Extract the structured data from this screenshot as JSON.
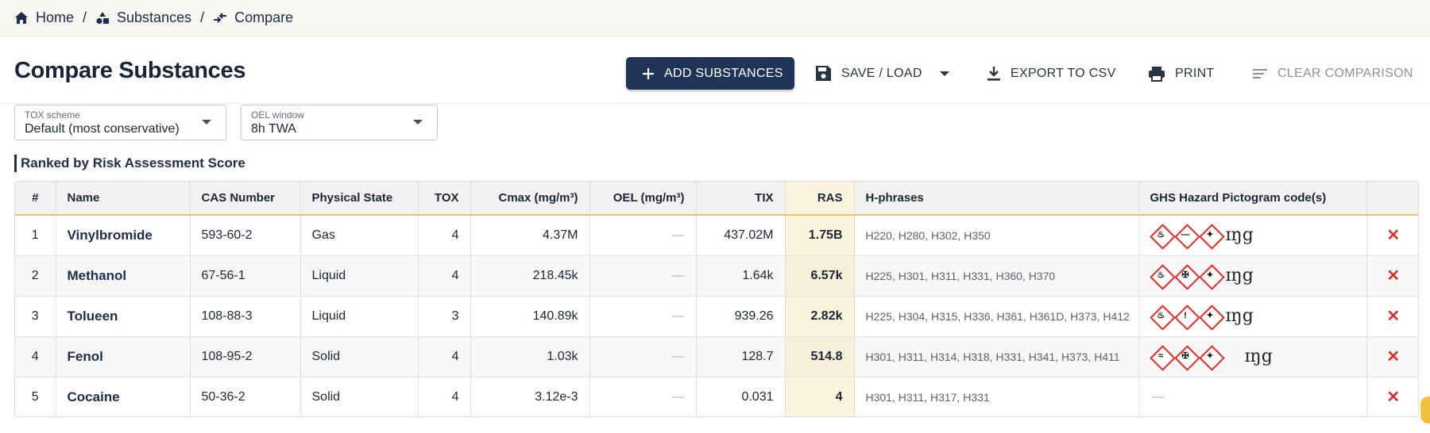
{
  "breadcrumb": {
    "home": "Home",
    "substances": "Substances",
    "compare": "Compare",
    "sep": "/"
  },
  "header": {
    "title": "Compare Substances",
    "add_label": "ADD SUBSTANCES",
    "save_label": "SAVE / LOAD",
    "export_label": "EXPORT TO CSV",
    "print_label": "PRINT",
    "clear_label": "CLEAR COMPARISON"
  },
  "filters": {
    "tox": {
      "label": "TOX scheme",
      "value": "Default (most conservative)"
    },
    "oel": {
      "label": "OEL window",
      "value": "8h TWA"
    }
  },
  "section_title": "Ranked by Risk Assessment Score",
  "table": {
    "columns": [
      "#",
      "Name",
      "CAS Number",
      "Physical State",
      "TOX",
      "Cmax (mg/m³)",
      "OEL (mg/m³)",
      "TIX",
      "RAS",
      "H-phrases",
      "GHS Hazard Pictogram code(s)",
      ""
    ],
    "rows": [
      {
        "rank": "1",
        "name": "Vinylbromide",
        "cas": "593-60-2",
        "state": "Gas",
        "tox": "4",
        "cmax": "4.37M",
        "oel": "—",
        "tix": "437.02M",
        "ras": "1.75B",
        "hphrases": "H220, H280, H302, H350",
        "pictograms": [
          "flame",
          "gas",
          "health"
        ],
        "pict_extra": "ɪŋg",
        "remove": "✕"
      },
      {
        "rank": "2",
        "name": "Methanol",
        "cas": "67-56-1",
        "state": "Liquid",
        "tox": "4",
        "cmax": "218.45k",
        "oel": "—",
        "tix": "1.64k",
        "ras": "6.57k",
        "hphrases": "H225, H301, H311, H331, H360, H370",
        "pictograms": [
          "flame",
          "skull",
          "health"
        ],
        "pict_extra": "ɪŋg",
        "remove": "✕"
      },
      {
        "rank": "3",
        "name": "Tolueen",
        "cas": "108-88-3",
        "state": "Liquid",
        "tox": "3",
        "cmax": "140.89k",
        "oel": "—",
        "tix": "939.26",
        "ras": "2.82k",
        "hphrases": "H225, H304, H315, H336, H361, H361D, H373, H412",
        "pictograms": [
          "flame",
          "exclamation",
          "health"
        ],
        "pict_extra": "ɪŋg",
        "remove": "✕"
      },
      {
        "rank": "4",
        "name": "Fenol",
        "cas": "108-95-2",
        "state": "Solid",
        "tox": "4",
        "cmax": "1.03k",
        "oel": "—",
        "tix": "128.7",
        "ras": "514.8",
        "hphrases": "H301, H311, H314, H318, H331, H341, H373, H411",
        "pictograms": [
          "corrosion",
          "skull",
          "health"
        ],
        "pict_extra": "ɪŋg",
        "remove": "✕"
      },
      {
        "rank": "5",
        "name": "Cocaine",
        "cas": "50-36-2",
        "state": "Solid",
        "tox": "4",
        "cmax": "3.12e-3",
        "oel": "—",
        "tix": "0.031",
        "ras": "4",
        "hphrases": "H301, H311, H317, H331",
        "pictograms": [],
        "pict_extra": "—",
        "remove": "✕"
      }
    ]
  },
  "colors": {
    "primary": "#1f3558",
    "accent": "#e3c766",
    "danger": "#d9302b",
    "ras_highlight": "#fbf4df"
  }
}
